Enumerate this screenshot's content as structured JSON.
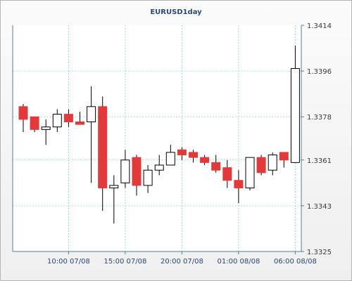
{
  "colors": {
    "up_fill": "#ffffff",
    "down_fill": "#e23a3a",
    "wick": "#000000",
    "grid": "#8fd0d6",
    "axis": "#5a7a9a"
  },
  "chart_data": {
    "type": "candlestick",
    "title": "EURUSD1day",
    "ylim": [
      1.3325,
      1.3414
    ],
    "y_ticks": [
      "1.3414",
      "1.3396",
      "1.3378",
      "1.3361",
      "1.3343",
      "1.3325"
    ],
    "x_ticks": [
      "10:00 07/08",
      "15:00 07/08",
      "20:00 07/08",
      "01:00 08/08",
      "06:00 08/08"
    ],
    "x_tick_index": [
      4,
      9,
      14,
      19,
      24
    ],
    "grid": true,
    "candles": [
      {
        "open": 1.3382,
        "high": 1.3383,
        "low": 1.3372,
        "close": 1.3377
      },
      {
        "open": 1.3378,
        "high": 1.3378,
        "low": 1.3372,
        "close": 1.3373
      },
      {
        "open": 1.3373,
        "high": 1.3377,
        "low": 1.3367,
        "close": 1.3374
      },
      {
        "open": 1.3374,
        "high": 1.3381,
        "low": 1.3372,
        "close": 1.3379
      },
      {
        "open": 1.3379,
        "high": 1.3381,
        "low": 1.3374,
        "close": 1.3376
      },
      {
        "open": 1.3376,
        "high": 1.338,
        "low": 1.3375,
        "close": 1.3375
      },
      {
        "open": 1.3376,
        "high": 1.339,
        "low": 1.3352,
        "close": 1.3382
      },
      {
        "open": 1.3382,
        "high": 1.3386,
        "low": 1.3341,
        "close": 1.335
      },
      {
        "open": 1.335,
        "high": 1.3355,
        "low": 1.3336,
        "close": 1.3351
      },
      {
        "open": 1.3352,
        "high": 1.3365,
        "low": 1.335,
        "close": 1.3361
      },
      {
        "open": 1.3362,
        "high": 1.3363,
        "low": 1.3347,
        "close": 1.3351
      },
      {
        "open": 1.3351,
        "high": 1.3359,
        "low": 1.3348,
        "close": 1.3357
      },
      {
        "open": 1.3357,
        "high": 1.3363,
        "low": 1.3355,
        "close": 1.3359
      },
      {
        "open": 1.3359,
        "high": 1.3367,
        "low": 1.3359,
        "close": 1.3364
      },
      {
        "open": 1.3365,
        "high": 1.3366,
        "low": 1.3361,
        "close": 1.3363
      },
      {
        "open": 1.3364,
        "high": 1.3365,
        "low": 1.336,
        "close": 1.3362
      },
      {
        "open": 1.3362,
        "high": 1.3363,
        "low": 1.3359,
        "close": 1.336
      },
      {
        "open": 1.336,
        "high": 1.3363,
        "low": 1.3356,
        "close": 1.3357
      },
      {
        "open": 1.3358,
        "high": 1.3361,
        "low": 1.335,
        "close": 1.3353
      },
      {
        "open": 1.3353,
        "high": 1.3357,
        "low": 1.3344,
        "close": 1.335
      },
      {
        "open": 1.335,
        "high": 1.3362,
        "low": 1.3349,
        "close": 1.3362
      },
      {
        "open": 1.3362,
        "high": 1.3363,
        "low": 1.3355,
        "close": 1.3356
      },
      {
        "open": 1.3357,
        "high": 1.3364,
        "low": 1.3355,
        "close": 1.3363
      },
      {
        "open": 1.3364,
        "high": 1.3364,
        "low": 1.3358,
        "close": 1.3361
      },
      {
        "open": 1.336,
        "high": 1.3406,
        "low": 1.336,
        "close": 1.3397
      }
    ]
  }
}
